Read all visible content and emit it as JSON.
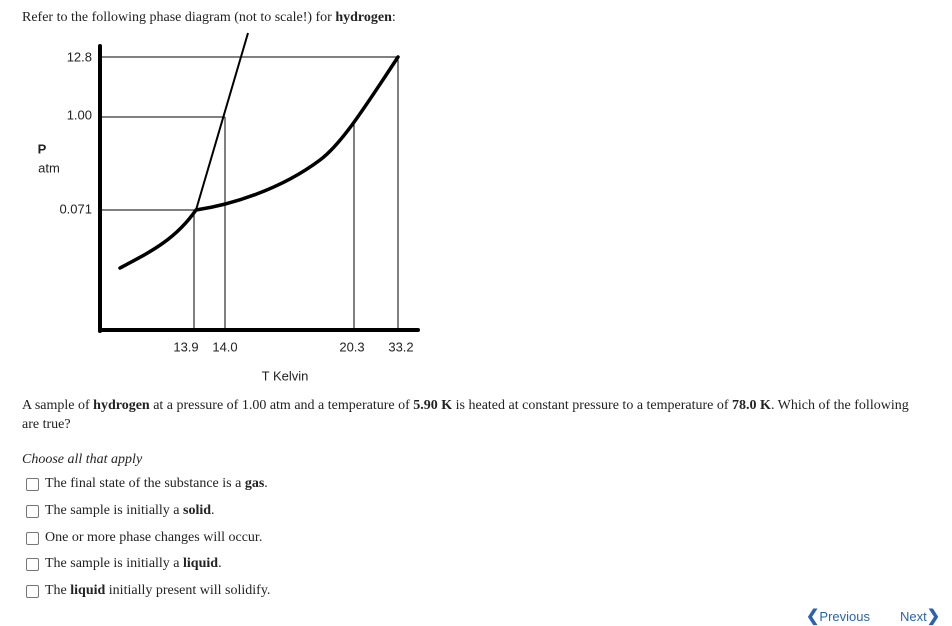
{
  "intro": [
    "Refer to the following phase diagram (not to scale!) for ",
    "hydrogen",
    ":"
  ],
  "diagram": {
    "y_label": [
      "P",
      "atm"
    ],
    "y_ticks": [
      "12.8",
      "1.00",
      "0.071"
    ],
    "x_ticks": [
      "13.9",
      "14.0",
      "20.3",
      "33.2"
    ],
    "x_label": "T Kelvin"
  },
  "question": [
    "A sample of ",
    "hydrogen",
    " at a pressure of 1.00 atm and a temperature of ",
    "5.90 K",
    " is heated at constant pressure to a temperature of ",
    "78.0 K",
    ". Which of the following are true?"
  ],
  "instruction": "Choose all that apply",
  "options": [
    [
      "The final state of the substance is a ",
      "gas",
      "."
    ],
    [
      "The sample is initially a ",
      "solid",
      "."
    ],
    [
      "One or more phase changes will occur."
    ],
    [
      "The sample is initially a ",
      "liquid",
      "."
    ],
    [
      "The ",
      "liquid",
      " initially present will solidify."
    ]
  ],
  "nav": {
    "previous": "Previous",
    "next": "Next"
  }
}
